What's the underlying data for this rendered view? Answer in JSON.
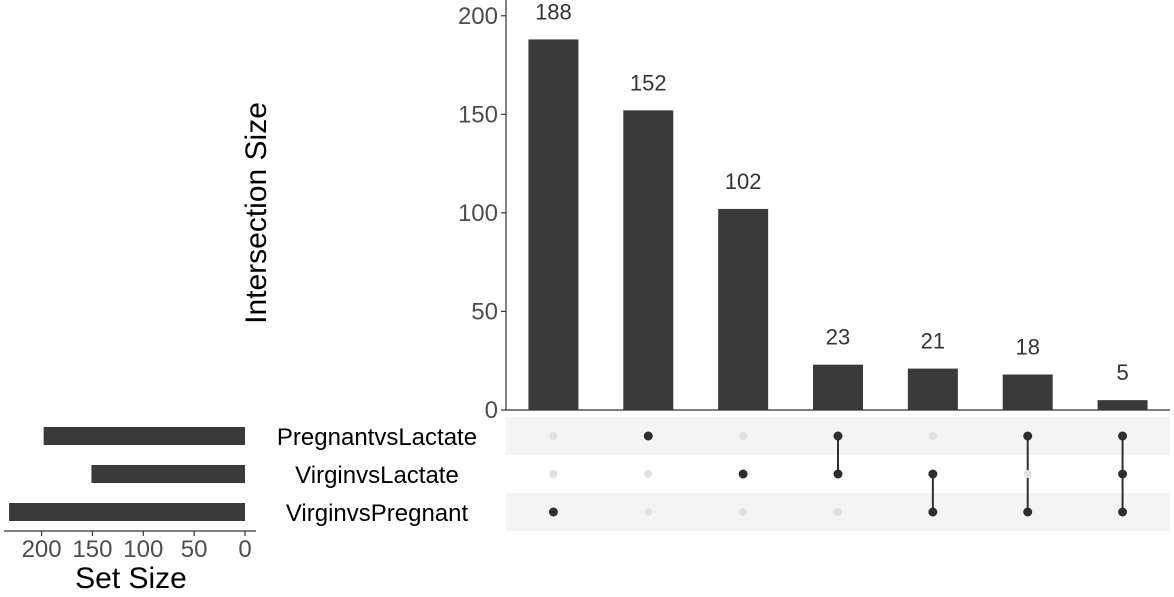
{
  "chart_data": {
    "type": "upset",
    "intersection_chart": {
      "type": "bar",
      "ylabel": "Intersection Size",
      "ylim": [
        0,
        208
      ],
      "yticks": [
        0,
        50,
        100,
        150,
        200
      ],
      "values": [
        188,
        152,
        102,
        23,
        21,
        18,
        5
      ],
      "data_labels": [
        "188",
        "152",
        "102",
        "23",
        "21",
        "18",
        "5"
      ],
      "memberships": [
        [
          "VirginvsPregnant"
        ],
        [
          "PregnantvsLactate"
        ],
        [
          "VirginvsLactate"
        ],
        [
          "PregnantvsLactate",
          "VirginvsLactate"
        ],
        [
          "VirginvsLactate",
          "VirginvsPregnant"
        ],
        [
          "PregnantvsLactate",
          "VirginvsPregnant"
        ],
        [
          "PregnantvsLactate",
          "VirginvsLactate",
          "VirginvsPregnant"
        ]
      ]
    },
    "set_size_chart": {
      "type": "bar",
      "orientation": "horizontal-reversed",
      "xlabel": "Set Size",
      "xlim": [
        0,
        235
      ],
      "xticks": [
        200,
        150,
        100,
        50,
        0
      ],
      "xtick_labels": [
        "200",
        "150",
        "100",
        "50",
        "0"
      ],
      "categories": [
        "PregnantvsLactate",
        "VirginvsLactate",
        "VirginvsPregnant"
      ],
      "values": [
        198,
        151,
        232
      ]
    },
    "colors": {
      "bar": "#3a3a3a",
      "dot_active": "#2e2e2e",
      "dot_inactive": "#e0e0e0",
      "stripe": "#f3f3f3"
    }
  }
}
